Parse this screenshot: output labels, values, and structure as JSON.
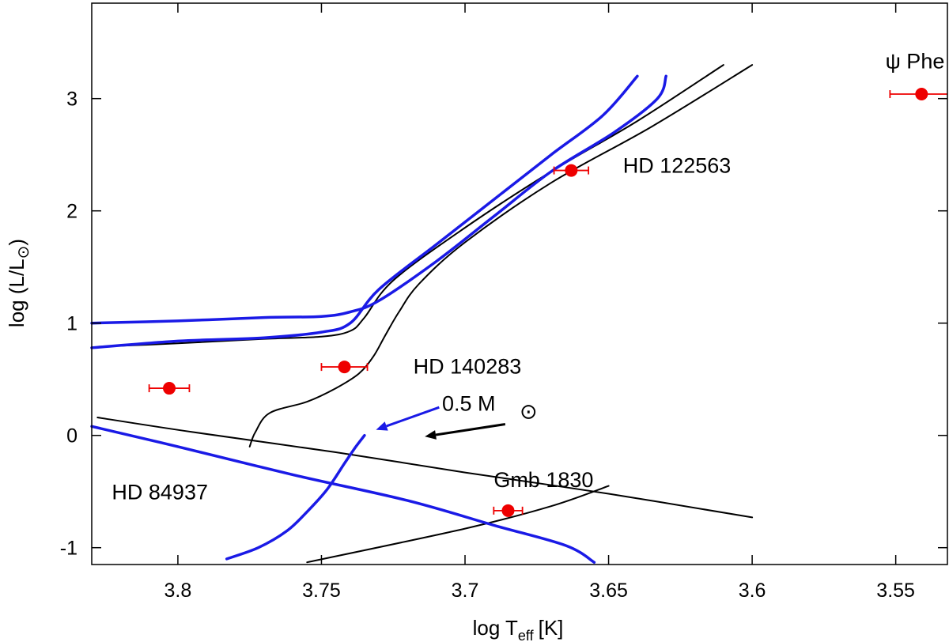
{
  "chart_data": {
    "type": "line",
    "title": "",
    "xlabel": "log T",
    "xlabel_sub": "eff",
    "xlabel_unit": "[K]",
    "ylabel": "log (L/L",
    "ylabel_sun": "⊙",
    "ylabel_close": ")",
    "xlim": [
      3.83,
      3.532
    ],
    "ylim": [
      -1.15,
      3.85
    ],
    "x_reversed": true,
    "grid": false,
    "legend": "none",
    "xticks": [
      3.8,
      3.75,
      3.7,
      3.65,
      3.6,
      3.55
    ],
    "xtick_labels": [
      "3.8",
      "3.75",
      "3.7",
      "3.65",
      "3.6",
      "3.55"
    ],
    "yticks": [
      -1,
      0,
      1,
      2,
      3
    ],
    "ytick_labels": [
      "-1",
      "0",
      "1",
      "2",
      "3"
    ],
    "colors": {
      "isochrone_black": "#000000",
      "isochrone_blue": "#1a1ae6",
      "stars": "#ee0000"
    },
    "series": [
      {
        "color": "black",
        "points": [
          [
            3.828,
            0.79
          ],
          [
            3.8,
            0.82
          ],
          [
            3.77,
            0.86
          ],
          [
            3.75,
            0.88
          ],
          [
            3.74,
            0.93
          ],
          [
            3.735,
            1.05
          ],
          [
            3.725,
            1.38
          ],
          [
            3.7,
            1.85
          ],
          [
            3.67,
            2.35
          ],
          [
            3.64,
            2.8
          ],
          [
            3.61,
            3.3
          ]
        ]
      },
      {
        "color": "black",
        "points": [
          [
            3.775,
            -0.1
          ],
          [
            3.773,
            0.03
          ],
          [
            3.768,
            0.2
          ],
          [
            3.755,
            0.3
          ],
          [
            3.745,
            0.42
          ],
          [
            3.737,
            0.55
          ],
          [
            3.732,
            0.7
          ],
          [
            3.728,
            0.88
          ],
          [
            3.723,
            1.1
          ],
          [
            3.716,
            1.35
          ],
          [
            3.7,
            1.72
          ],
          [
            3.67,
            2.25
          ],
          [
            3.635,
            2.75
          ],
          [
            3.6,
            3.3
          ]
        ]
      },
      {
        "color": "black",
        "points": [
          [
            3.828,
            0.16
          ],
          [
            3.795,
            0.03
          ],
          [
            3.745,
            -0.15
          ],
          [
            3.7,
            -0.33
          ],
          [
            3.65,
            -0.52
          ],
          [
            3.6,
            -0.73
          ]
        ]
      },
      {
        "color": "black",
        "points": [
          [
            3.755,
            -1.13
          ],
          [
            3.7,
            -0.83
          ],
          [
            3.67,
            -0.63
          ],
          [
            3.65,
            -0.45
          ]
        ]
      },
      {
        "color": "blue",
        "points": [
          [
            3.83,
            1.0
          ],
          [
            3.8,
            1.02
          ],
          [
            3.77,
            1.05
          ],
          [
            3.75,
            1.06
          ],
          [
            3.74,
            1.1
          ],
          [
            3.73,
            1.2
          ],
          [
            3.71,
            1.55
          ],
          [
            3.69,
            1.95
          ],
          [
            3.67,
            2.35
          ],
          [
            3.648,
            2.7
          ],
          [
            3.633,
            3.0
          ],
          [
            3.63,
            3.2
          ]
        ]
      },
      {
        "color": "blue",
        "points": [
          [
            3.83,
            0.78
          ],
          [
            3.8,
            0.84
          ],
          [
            3.77,
            0.87
          ],
          [
            3.75,
            0.92
          ],
          [
            3.74,
            1.0
          ],
          [
            3.73,
            1.3
          ],
          [
            3.71,
            1.7
          ],
          [
            3.69,
            2.1
          ],
          [
            3.67,
            2.5
          ],
          [
            3.652,
            2.85
          ],
          [
            3.64,
            3.2
          ]
        ]
      },
      {
        "color": "blue",
        "points": [
          [
            3.735,
            0.0
          ],
          [
            3.738,
            -0.1
          ],
          [
            3.742,
            -0.25
          ],
          [
            3.748,
            -0.48
          ],
          [
            3.755,
            -0.68
          ],
          [
            3.762,
            -0.85
          ],
          [
            3.772,
            -1.0
          ],
          [
            3.783,
            -1.1
          ]
        ]
      },
      {
        "color": "blue",
        "points": [
          [
            3.83,
            0.08
          ],
          [
            3.8,
            -0.1
          ],
          [
            3.76,
            -0.35
          ],
          [
            3.72,
            -0.58
          ],
          [
            3.69,
            -0.8
          ],
          [
            3.665,
            -0.98
          ],
          [
            3.655,
            -1.13
          ]
        ]
      }
    ],
    "stars": [
      {
        "name": "HD 84937",
        "x": 3.803,
        "y": 0.42,
        "xerr": 0.007
      },
      {
        "name": "HD 140283",
        "x": 3.742,
        "y": 0.61,
        "xerr": 0.008
      },
      {
        "name": "HD 122563",
        "x": 3.663,
        "y": 2.36,
        "xerr": 0.006
      },
      {
        "name": "Gmb 1830",
        "x": 3.685,
        "y": -0.67,
        "xerr": 0.005
      },
      {
        "name": "ψ Phe",
        "x": 3.541,
        "y": 3.04,
        "xerr": 0.011
      }
    ],
    "annotations": [
      {
        "text": "HD 122563",
        "x": 3.645,
        "y": 2.34,
        "anchor": "start"
      },
      {
        "text": "HD 140283",
        "x": 3.718,
        "y": 0.55,
        "anchor": "start"
      },
      {
        "text": "HD 84937",
        "x": 3.823,
        "y": -0.57,
        "anchor": "start"
      },
      {
        "text": "Gmb 1830",
        "x": 3.69,
        "y": -0.46,
        "anchor": "start"
      },
      {
        "text": "ψ Phe",
        "x": 3.533,
        "y": 3.27,
        "anchor": "end"
      },
      {
        "text": "0.5 M",
        "x": 3.708,
        "y": 0.22,
        "anchor": "start"
      },
      {
        "text": "⊙",
        "x": 3.681,
        "y": 0.15,
        "anchor": "start"
      }
    ],
    "arrows": [
      {
        "color": "blue",
        "from": [
          3.709,
          0.25
        ],
        "to": [
          3.731,
          0.05
        ]
      },
      {
        "color": "black",
        "from": [
          3.686,
          0.1
        ],
        "to": [
          3.714,
          -0.01
        ]
      }
    ]
  }
}
